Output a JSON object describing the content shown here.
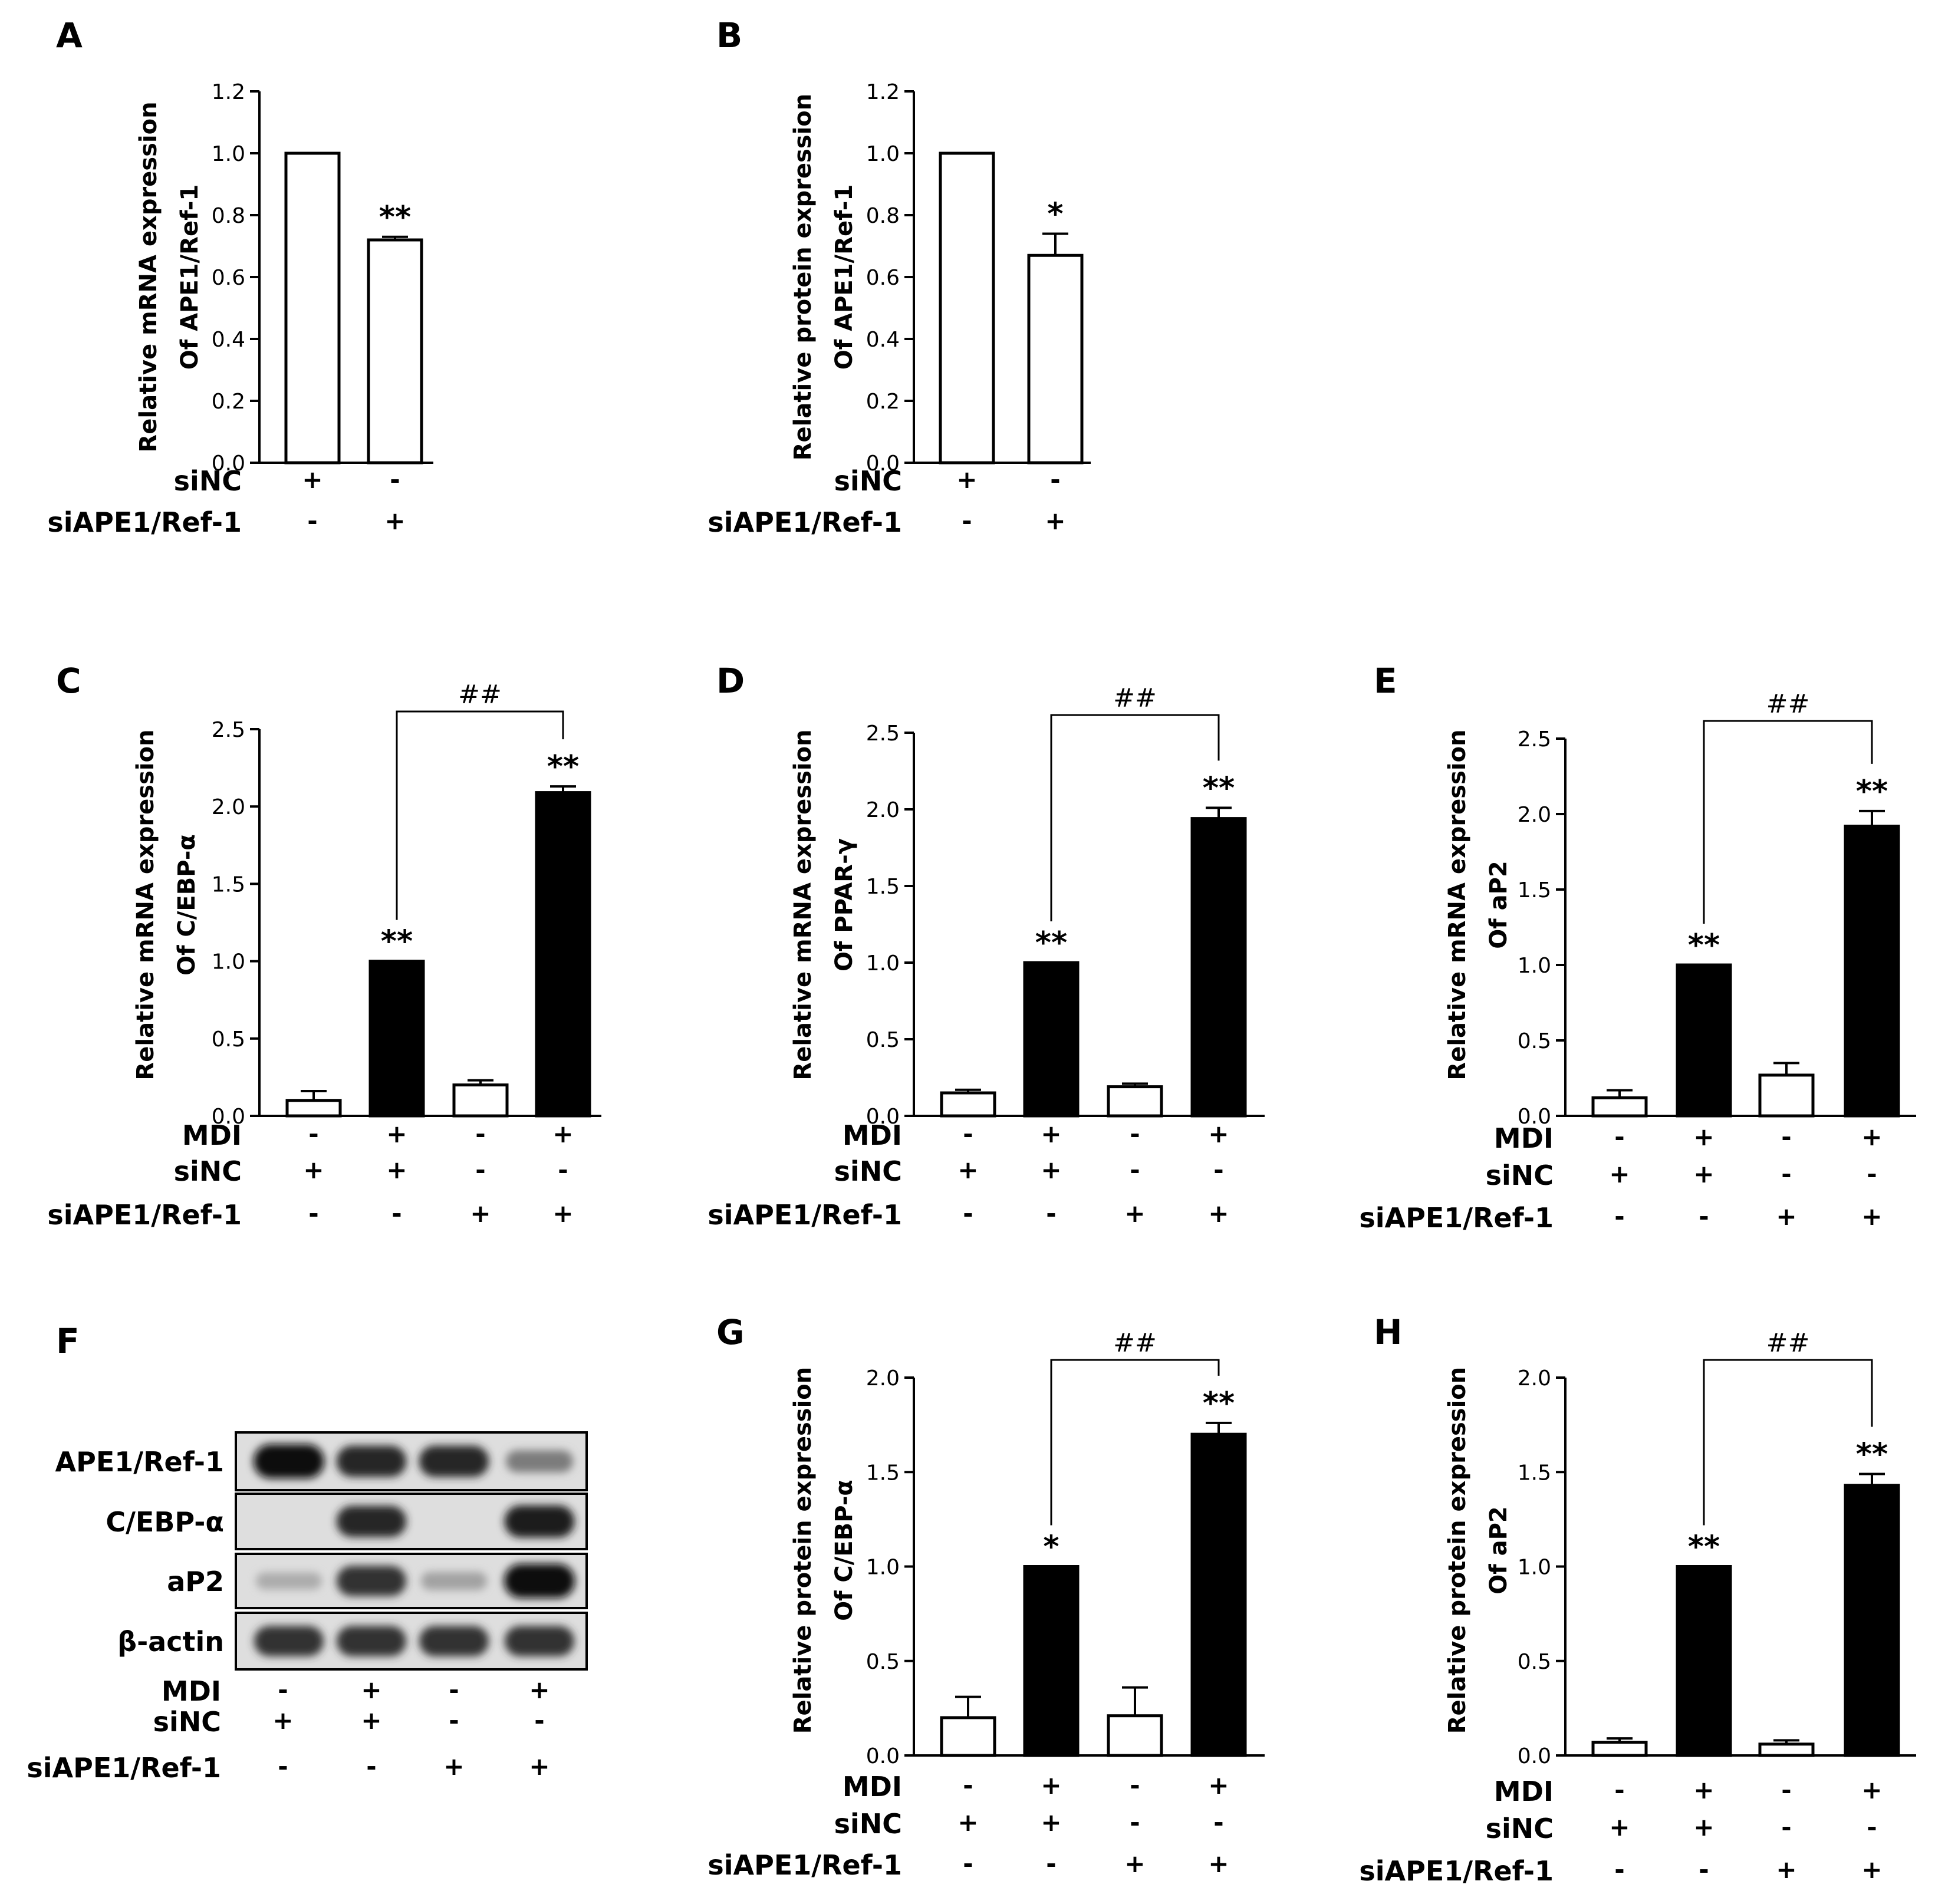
{
  "chart_data": [
    {
      "panel": "A",
      "type": "bar",
      "ylabel": [
        "Relative mRNA expression",
        "Of APE1/Ref-1"
      ],
      "ylim": [
        0,
        1.2
      ],
      "yticks": [
        "0.0",
        "0.2",
        "0.4",
        "0.6",
        "0.8",
        "1.0",
        "1.2"
      ],
      "values": [
        1.0,
        0.72
      ],
      "errors": [
        0,
        0.01
      ],
      "fills": [
        "white",
        "white"
      ],
      "significance": [
        "",
        "**"
      ],
      "conditions": [
        {
          "label": "siNC",
          "signs": [
            "+",
            "-"
          ]
        },
        {
          "label": "siAPE1/Ref-1",
          "signs": [
            "-",
            "+"
          ]
        }
      ]
    },
    {
      "panel": "B",
      "type": "bar",
      "ylabel": [
        "Relative protein expression",
        "Of APE1/Ref-1"
      ],
      "ylim": [
        0,
        1.2
      ],
      "yticks": [
        "0.0",
        "0.2",
        "0.4",
        "0.6",
        "0.8",
        "1.0",
        "1.2"
      ],
      "values": [
        1.0,
        0.67
      ],
      "errors": [
        0,
        0.07
      ],
      "fills": [
        "white",
        "white"
      ],
      "significance": [
        "",
        "*"
      ],
      "conditions": [
        {
          "label": "siNC",
          "signs": [
            "+",
            "-"
          ]
        },
        {
          "label": "siAPE1/Ref-1",
          "signs": [
            "-",
            "+"
          ]
        }
      ]
    },
    {
      "panel": "C",
      "type": "bar",
      "ylabel": [
        "Relative mRNA expression",
        "Of C/EBP-α"
      ],
      "ylim": [
        0,
        2.5
      ],
      "yticks": [
        "0.0",
        "0.5",
        "1.0",
        "1.5",
        "2.0",
        "2.5"
      ],
      "values": [
        0.1,
        1.0,
        0.2,
        2.09
      ],
      "errors": [
        0.06,
        0,
        0.03,
        0.04
      ],
      "fills": [
        "white",
        "black",
        "white",
        "black"
      ],
      "significance": [
        "",
        "**",
        "",
        "**"
      ],
      "bracket": {
        "from": 1,
        "to": 3,
        "label": "##"
      },
      "conditions": [
        {
          "label": "MDI",
          "signs": [
            "-",
            "+",
            "-",
            "+"
          ]
        },
        {
          "label": "siNC",
          "signs": [
            "+",
            "+",
            "-",
            "-"
          ]
        },
        {
          "label": "siAPE1/Ref-1",
          "signs": [
            "-",
            "-",
            "+",
            "+"
          ]
        }
      ]
    },
    {
      "panel": "D",
      "type": "bar",
      "ylabel": [
        "Relative mRNA expression",
        "Of PPAR-γ"
      ],
      "ylim": [
        0,
        2.5
      ],
      "yticks": [
        "0.0",
        "0.5",
        "1.0",
        "1.5",
        "2.0",
        "2.5"
      ],
      "values": [
        0.15,
        1.0,
        0.19,
        1.94
      ],
      "errors": [
        0.02,
        0,
        0.02,
        0.07
      ],
      "fills": [
        "white",
        "black",
        "white",
        "black"
      ],
      "significance": [
        "",
        "**",
        "",
        "**"
      ],
      "bracket": {
        "from": 1,
        "to": 3,
        "label": "##"
      },
      "conditions": [
        {
          "label": "MDI",
          "signs": [
            "-",
            "+",
            "-",
            "+"
          ]
        },
        {
          "label": "siNC",
          "signs": [
            "+",
            "+",
            "-",
            "-"
          ]
        },
        {
          "label": "siAPE1/Ref-1",
          "signs": [
            "-",
            "-",
            "+",
            "+"
          ]
        }
      ]
    },
    {
      "panel": "E",
      "type": "bar",
      "ylabel": [
        "Relative mRNA expression",
        "Of aP2"
      ],
      "ylim": [
        0,
        2.5
      ],
      "yticks": [
        "0.0",
        "0.5",
        "1.0",
        "1.5",
        "2.0",
        "2.5"
      ],
      "values": [
        0.12,
        1.0,
        0.27,
        1.92
      ],
      "errors": [
        0.05,
        0,
        0.08,
        0.1
      ],
      "fills": [
        "white",
        "black",
        "white",
        "black"
      ],
      "significance": [
        "",
        "**",
        "",
        "**"
      ],
      "bracket": {
        "from": 1,
        "to": 3,
        "label": "##"
      },
      "conditions": [
        {
          "label": "MDI",
          "signs": [
            "-",
            "+",
            "-",
            "+"
          ]
        },
        {
          "label": "siNC",
          "signs": [
            "+",
            "+",
            "-",
            "-"
          ]
        },
        {
          "label": "siAPE1/Ref-1",
          "signs": [
            "-",
            "-",
            "+",
            "+"
          ]
        }
      ]
    },
    {
      "panel": "G",
      "type": "bar",
      "ylabel": [
        "Relative protein expression",
        "Of C/EBP-α"
      ],
      "ylim": [
        0,
        2.0
      ],
      "yticks": [
        "0.0",
        "0.5",
        "1.0",
        "1.5",
        "2.0"
      ],
      "values": [
        0.2,
        1.0,
        0.21,
        1.7
      ],
      "errors": [
        0.11,
        0,
        0.15,
        0.06
      ],
      "fills": [
        "white",
        "black",
        "white",
        "black"
      ],
      "significance": [
        "",
        "*",
        "",
        "**"
      ],
      "bracket": {
        "from": 1,
        "to": 3,
        "label": "##"
      },
      "conditions": [
        {
          "label": "MDI",
          "signs": [
            "-",
            "+",
            "-",
            "+"
          ]
        },
        {
          "label": "siNC",
          "signs": [
            "+",
            "+",
            "-",
            "-"
          ]
        },
        {
          "label": "siAPE1/Ref-1",
          "signs": [
            "-",
            "-",
            "+",
            "+"
          ]
        }
      ]
    },
    {
      "panel": "H",
      "type": "bar",
      "ylabel": [
        "Relative protein expression",
        "Of aP2"
      ],
      "ylim": [
        0,
        2.0
      ],
      "yticks": [
        "0.0",
        "0.5",
        "1.0",
        "1.5",
        "2.0"
      ],
      "values": [
        0.07,
        1.0,
        0.06,
        1.43
      ],
      "errors": [
        0.02,
        0,
        0.02,
        0.06
      ],
      "fills": [
        "white",
        "black",
        "white",
        "black"
      ],
      "significance": [
        "",
        "**",
        "",
        "**"
      ],
      "bracket": {
        "from": 1,
        "to": 3,
        "label": "##"
      },
      "conditions": [
        {
          "label": "MDI",
          "signs": [
            "-",
            "+",
            "-",
            "+"
          ]
        },
        {
          "label": "siNC",
          "signs": [
            "+",
            "+",
            "-",
            "-"
          ]
        },
        {
          "label": "siAPE1/Ref-1",
          "signs": [
            "-",
            "-",
            "+",
            "+"
          ]
        }
      ]
    }
  ],
  "blot": {
    "panel": "F",
    "rows": [
      {
        "label": "APE1/Ref-1",
        "band_levels": [
          1.0,
          0.85,
          0.85,
          0.4
        ]
      },
      {
        "label": "C/EBP-α",
        "band_levels": [
          0.0,
          0.85,
          0.0,
          0.9
        ]
      },
      {
        "label": "aP2",
        "band_levels": [
          0.15,
          0.8,
          0.2,
          1.0
        ]
      },
      {
        "label": "β-actin",
        "band_levels": [
          0.8,
          0.8,
          0.8,
          0.8
        ]
      }
    ],
    "conditions": [
      {
        "label": "MDI",
        "signs": [
          "-",
          "+",
          "-",
          "+"
        ]
      },
      {
        "label": "siNC",
        "signs": [
          "+",
          "+",
          "-",
          "-"
        ]
      },
      {
        "label": "siAPE1/Ref-1",
        "signs": [
          "-",
          "-",
          "+",
          "+"
        ]
      }
    ]
  }
}
